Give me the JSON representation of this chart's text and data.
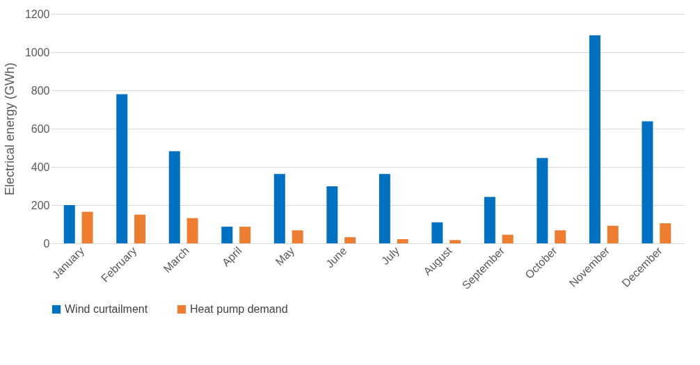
{
  "chart_data": {
    "type": "bar",
    "ylabel": "Electrical energy (GWh)",
    "categories": [
      "January",
      "February",
      "March",
      "April",
      "May",
      "June",
      "July",
      "August",
      "September",
      "October",
      "November",
      "December"
    ],
    "series": [
      {
        "name": "Wind curtailment",
        "color": "#0070c0",
        "values": [
          200,
          780,
          482,
          87,
          363,
          298,
          363,
          110,
          243,
          446,
          1088,
          638
        ]
      },
      {
        "name": "Heat pump demand",
        "color": "#ed7d31",
        "values": [
          165,
          150,
          132,
          87,
          68,
          32,
          22,
          17,
          45,
          68,
          92,
          105
        ]
      }
    ],
    "ylim": [
      0,
      1200
    ],
    "yticks": [
      0,
      200,
      400,
      600,
      800,
      1000,
      1200
    ],
    "grid": "y",
    "legend": "bottom"
  }
}
